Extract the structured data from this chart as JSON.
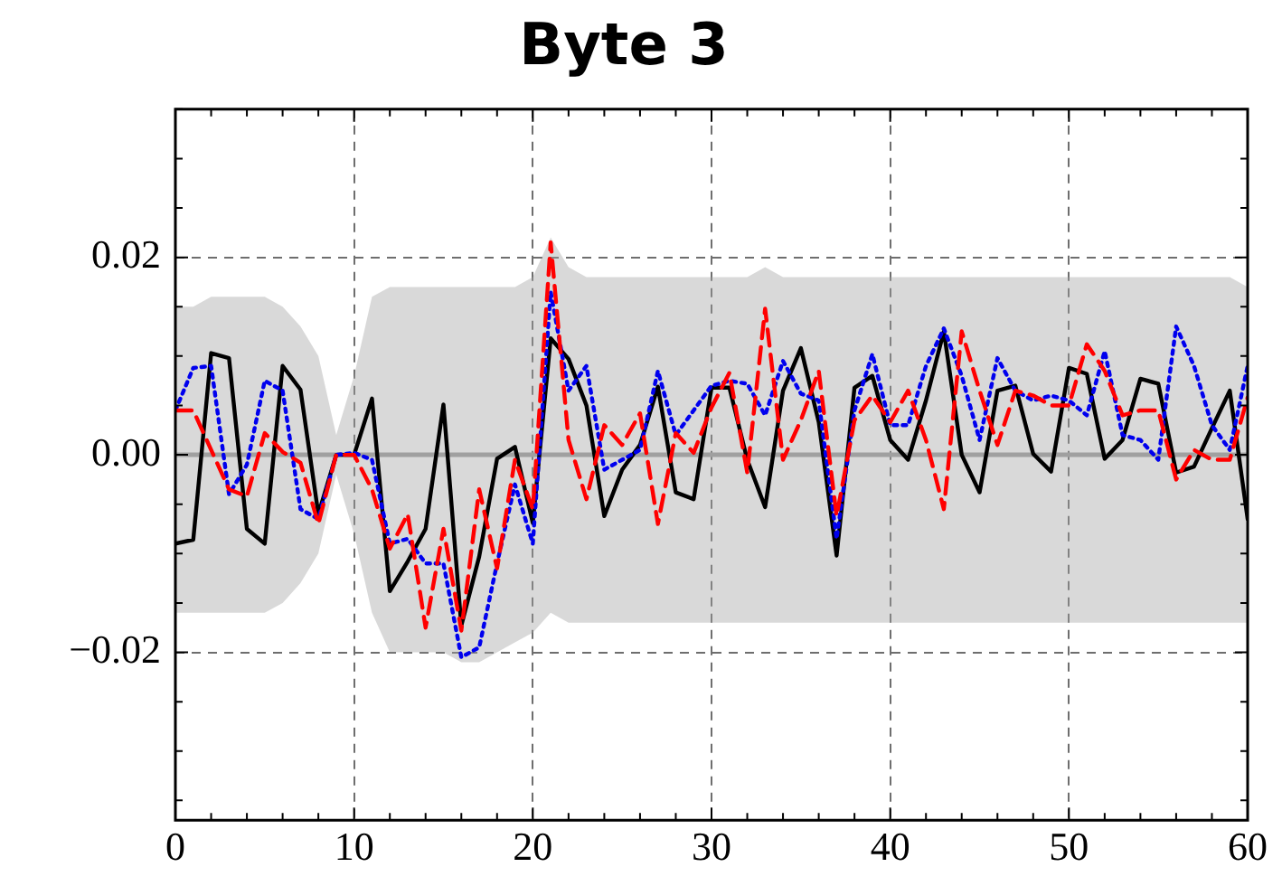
{
  "chart_data": {
    "type": "line",
    "title": "Byte 3",
    "x": [
      0,
      1,
      2,
      3,
      4,
      5,
      6,
      7,
      8,
      9,
      10,
      11,
      12,
      13,
      14,
      15,
      16,
      17,
      18,
      19,
      20,
      21,
      22,
      23,
      24,
      25,
      26,
      27,
      28,
      29,
      30,
      31,
      32,
      33,
      34,
      35,
      36,
      37,
      38,
      39,
      40,
      41,
      42,
      43,
      44,
      45,
      46,
      47,
      48,
      49,
      50,
      51,
      52,
      53,
      54,
      55,
      56,
      57,
      58,
      59,
      60
    ],
    "series": [
      {
        "type": "line",
        "color": "#a0a0a0",
        "values": [
          0,
          0,
          0,
          0,
          0,
          0,
          0,
          0,
          0,
          0,
          0,
          0,
          0,
          0,
          0,
          0,
          0,
          0,
          0,
          0,
          0,
          0,
          0,
          0,
          0,
          0,
          0,
          0,
          0,
          0,
          0,
          0,
          0,
          0,
          0,
          0,
          0,
          0,
          0,
          0,
          0,
          0,
          0,
          0,
          0,
          0,
          0,
          0,
          0,
          0,
          0,
          0,
          0,
          0,
          0,
          0,
          0,
          0,
          0,
          0,
          0
        ],
        "lower": [
          -0.016,
          -0.016,
          -0.016,
          -0.016,
          -0.016,
          -0.016,
          -0.015,
          -0.013,
          -0.01,
          -0.002,
          -0.008,
          -0.016,
          -0.02,
          -0.02,
          -0.02,
          -0.02,
          -0.021,
          -0.021,
          -0.02,
          -0.019,
          -0.018,
          -0.016,
          -0.017,
          -0.017,
          -0.017,
          -0.017,
          -0.017,
          -0.017,
          -0.017,
          -0.017,
          -0.017,
          -0.017,
          -0.017,
          -0.017,
          -0.017,
          -0.017,
          -0.017,
          -0.017,
          -0.017,
          -0.017,
          -0.017,
          -0.017,
          -0.017,
          -0.017,
          -0.017,
          -0.017,
          -0.017,
          -0.017,
          -0.017,
          -0.017,
          -0.017,
          -0.017,
          -0.017,
          -0.017,
          -0.017,
          -0.017,
          -0.017,
          -0.017,
          -0.017,
          -0.017,
          -0.017
        ],
        "upper": [
          0.015,
          0.015,
          0.016,
          0.016,
          0.016,
          0.016,
          0.015,
          0.013,
          0.01,
          0.002,
          0.008,
          0.016,
          0.017,
          0.017,
          0.017,
          0.017,
          0.017,
          0.017,
          0.017,
          0.017,
          0.018,
          0.022,
          0.019,
          0.018,
          0.018,
          0.018,
          0.018,
          0.018,
          0.018,
          0.018,
          0.018,
          0.018,
          0.018,
          0.019,
          0.018,
          0.018,
          0.018,
          0.018,
          0.018,
          0.018,
          0.018,
          0.018,
          0.018,
          0.018,
          0.018,
          0.018,
          0.018,
          0.018,
          0.018,
          0.018,
          0.018,
          0.018,
          0.018,
          0.018,
          0.018,
          0.018,
          0.018,
          0.018,
          0.018,
          0.018,
          0.017
        ]
      },
      {
        "color": "#ff0000",
        "line_style": "dashed",
        "values": [
          0.0045,
          0.0045,
          0.0005,
          -0.0035,
          -0.0042,
          0.0022,
          0.0003,
          -0.0008,
          -0.007,
          0,
          0,
          -0.0035,
          -0.0095,
          -0.006,
          -0.0175,
          -0.0075,
          -0.0178,
          -0.0035,
          -0.0115,
          -0.0005,
          -0.0055,
          0.0215,
          0.0015,
          -0.0045,
          0.003,
          0.001,
          0.0042,
          -0.007,
          0.0022,
          0.0002,
          0.0048,
          0.0083,
          -0.0018,
          0.0148,
          -0.0005,
          0.0035,
          0.0085,
          -0.0062,
          0.0035,
          0.006,
          0.0033,
          0.0065,
          0.0015,
          -0.0055,
          0.0125,
          0.0065,
          0.001,
          0.0065,
          0.006,
          0.005,
          0.005,
          0.0112,
          0.0085,
          0.004,
          0.0045,
          0.0045,
          -0.0025,
          0.0005,
          -0.0005,
          -0.0005,
          0.0058
        ]
      },
      {
        "color": "#0000ee",
        "line_style": "dotted",
        "values": [
          0.0045,
          0.0088,
          0.009,
          -0.004,
          -0.001,
          0.0075,
          0.0065,
          -0.0055,
          -0.0065,
          0,
          0.0002,
          -0.0005,
          -0.009,
          -0.0085,
          -0.011,
          -0.011,
          -0.0205,
          -0.0195,
          -0.011,
          -0.003,
          -0.009,
          0.0165,
          0.0065,
          0.009,
          -0.0015,
          -0.0005,
          0.0005,
          0.0085,
          0.002,
          0.0045,
          0.007,
          0.0075,
          0.0072,
          0.004,
          0.0095,
          0.0062,
          0.0055,
          -0.0085,
          0.0045,
          0.0102,
          0.003,
          0.003,
          0.009,
          0.0128,
          0.008,
          0.0015,
          0.0098,
          0.0065,
          0.0055,
          0.006,
          0.0055,
          0.004,
          0.0105,
          0.002,
          0.0015,
          -0.0005,
          0.013,
          0.009,
          0.003,
          0.0005,
          0.009
        ]
      },
      {
        "color": "#000000",
        "line_style": "solid",
        "values": [
          -0.009,
          -0.0086,
          0.0103,
          0.0098,
          -0.0075,
          -0.009,
          0.009,
          0.0066,
          -0.006,
          0,
          0,
          0.0057,
          -0.0138,
          -0.0108,
          -0.0075,
          0.0051,
          -0.0173,
          -0.0103,
          -0.0004,
          0.0008,
          -0.0069,
          0.0118,
          0.0097,
          0.005,
          -0.0062,
          -0.0015,
          0.001,
          0.0069,
          -0.0038,
          -0.0045,
          0.0068,
          0.0068,
          -0.0005,
          -0.0053,
          0.0065,
          0.0108,
          0.0033,
          -0.0102,
          0.0068,
          0.008,
          0.0015,
          -0.0005,
          0.0055,
          0.0125,
          0,
          -0.0038,
          0.0065,
          0.007,
          0.0001,
          -0.0017,
          0.0088,
          0.0082,
          -0.0004,
          0.0015,
          0.0077,
          0.0072,
          -0.0018,
          -0.0012,
          0.0027,
          0.0065,
          -0.0065
        ]
      }
    ],
    "xlim": [
      0,
      60
    ],
    "xticks": [
      0,
      10,
      20,
      30,
      40,
      50,
      60
    ],
    "ylim": [
      -0.037,
      0.035
    ],
    "yticks": [
      {
        "value": -0.02,
        "label": "−0.02"
      },
      {
        "value": 0,
        "label": "0.00"
      },
      0.02
    ],
    "grid": true,
    "legend": false,
    "marker": "none"
  }
}
